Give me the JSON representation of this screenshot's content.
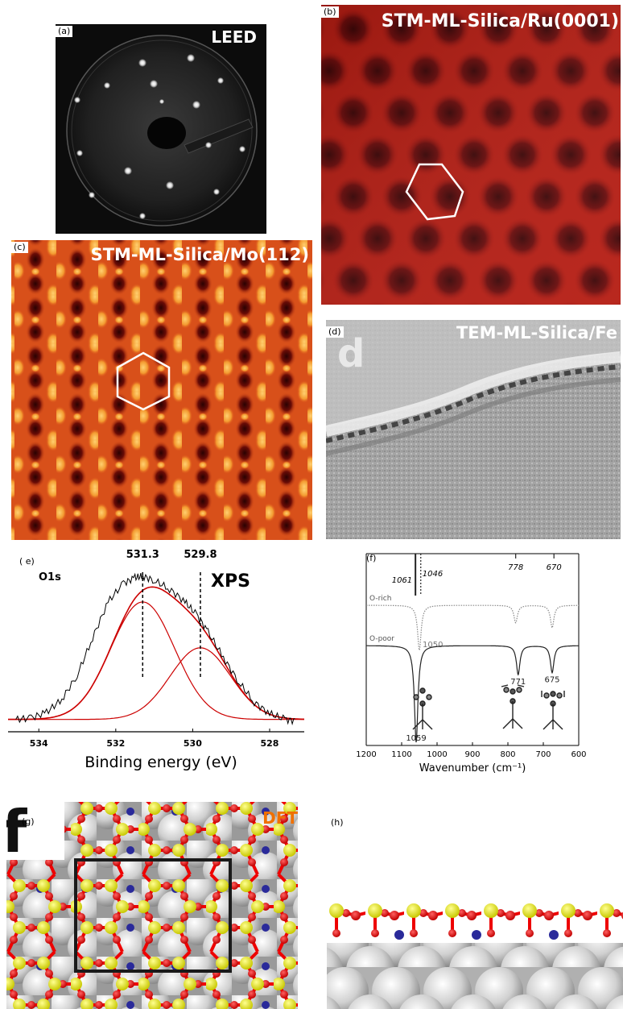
{
  "panels": {
    "a": {
      "label": "(a)",
      "title": "LEED"
    },
    "b": {
      "label": "(b)",
      "title": "STM-ML-Silica/Ru(0001)"
    },
    "c": {
      "label": "(c)",
      "title": "STM-ML-Silica/Mo(112)"
    },
    "d": {
      "label": "(d)",
      "title": "TEM-ML-Silica/Fe",
      "letter": "d"
    },
    "e": {
      "label": "( e)",
      "title": "XPS",
      "species": "O1s"
    },
    "f": {
      "label": "(f)"
    },
    "g": {
      "label": "(g)",
      "title": "DFT",
      "letter": "f"
    },
    "h": {
      "label": "(h)"
    }
  },
  "chart_data": [
    {
      "type": "line",
      "panel": "e",
      "title": "XPS",
      "annotation": "O1s",
      "xlabel": "Binding energy (eV)",
      "ylabel": "",
      "xlim": [
        534.8,
        527.1
      ],
      "x_reversed": true,
      "xticks": [
        "534",
        "532",
        "530",
        "528"
      ],
      "peak_labels": [
        {
          "x": 531.3,
          "label": "531.3"
        },
        {
          "x": 529.8,
          "label": "529.8"
        }
      ],
      "series": [
        {
          "color": "#000000",
          "kind": "raw",
          "x": [
            534.6,
            534.2,
            533.8,
            533.4,
            533.0,
            532.6,
            532.2,
            531.8,
            531.5,
            531.3,
            531.0,
            530.6,
            530.2,
            529.9,
            529.6,
            529.2,
            528.8,
            528.4,
            528.0,
            527.6,
            527.3
          ],
          "y": [
            0.03,
            0.04,
            0.08,
            0.17,
            0.34,
            0.6,
            0.85,
            0.98,
            1.02,
            1.03,
            1.0,
            0.94,
            0.85,
            0.76,
            0.64,
            0.46,
            0.29,
            0.15,
            0.07,
            0.03,
            0.02
          ]
        },
        {
          "color": "#cc0000",
          "kind": "component",
          "center": 531.3,
          "amplitude": 0.82,
          "fwhm": 1.95
        },
        {
          "color": "#cc0000",
          "kind": "component",
          "center": 529.8,
          "amplitude": 0.5,
          "fwhm": 1.85
        }
      ]
    },
    {
      "type": "line",
      "panel": "f",
      "xlabel": "Wavenumber (cm⁻¹)",
      "ylabel": "",
      "xlim": [
        1200,
        600
      ],
      "x_reversed": true,
      "xticks": [
        "1200",
        "1100",
        "1000",
        "900",
        "800",
        "700",
        "600"
      ],
      "top_ticks": [
        {
          "x": 1061,
          "label": "1061"
        },
        {
          "x": 1046,
          "label": "1046"
        },
        {
          "x": 778,
          "label": "778"
        },
        {
          "x": 670,
          "label": "670"
        }
      ],
      "series": [
        {
          "name": "O-rich",
          "style": "dotted",
          "color": "#888888",
          "peaks": [
            {
              "x": 1050,
              "depth": 0.9,
              "label": "1050"
            },
            {
              "x": 778,
              "depth": 0.35
            },
            {
              "x": 675,
              "depth": 0.45
            }
          ]
        },
        {
          "name": "O-poor",
          "style": "solid",
          "color": "#222222",
          "peaks": [
            {
              "x": 1059,
              "depth": 1.0,
              "label": "1059"
            },
            {
              "x": 771,
              "depth": 0.3,
              "label": "771"
            },
            {
              "x": 675,
              "depth": 0.28,
              "label": "675"
            }
          ]
        }
      ]
    }
  ],
  "colors": {
    "silicon": "#e6e600",
    "oxygen": "#e00000",
    "metal": "#d4d4d4",
    "substrate_o": "#2a2a9a",
    "dft_label": "#f07000",
    "stm_b": "#b01810",
    "stm_c": "#e0561a"
  }
}
